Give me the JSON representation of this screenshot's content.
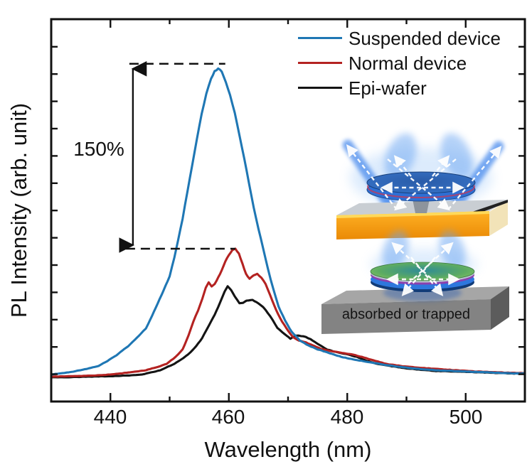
{
  "figure": {
    "background": "#ffffff",
    "xlabel": "Wavelength (nm)",
    "ylabel": "PL Intensity (arb. unit)"
  },
  "chart_data": {
    "type": "line",
    "title": "",
    "xlabel": "Wavelength (nm)",
    "ylabel": "PL Intensity (arb. unit)",
    "x_unit": "nm",
    "y_unit": "arb. unit",
    "xlim": [
      430,
      510
    ],
    "ylim": [
      -0.22,
      2.83
    ],
    "grid": false,
    "legend_position": "top-right-inside",
    "xticks_major": [
      440,
      460,
      480,
      500
    ],
    "xticks_minor": [
      450,
      470,
      490
    ],
    "yticks_labeled": false,
    "series": [
      {
        "name": "Suspended device",
        "color": "#1f77b4",
        "peak_nm": 458.2,
        "peak_value": 2.43,
        "points": [
          [
            430,
            0
          ],
          [
            433,
            0.017
          ],
          [
            436,
            0.045
          ],
          [
            438,
            0.068
          ],
          [
            439.5,
            0.107
          ],
          [
            441,
            0.153
          ],
          [
            443,
            0.226
          ],
          [
            444.5,
            0.294
          ],
          [
            446,
            0.367
          ],
          [
            447,
            0.463
          ],
          [
            448,
            0.565
          ],
          [
            449,
            0.672
          ],
          [
            450,
            0.78
          ],
          [
            450.8,
            0.93
          ],
          [
            451.4,
            1.06
          ],
          [
            452.2,
            1.24
          ],
          [
            453,
            1.45
          ],
          [
            453.8,
            1.66
          ],
          [
            454.6,
            1.87
          ],
          [
            455.4,
            2.07
          ],
          [
            456.2,
            2.23
          ],
          [
            457,
            2.35
          ],
          [
            457.6,
            2.41
          ],
          [
            458.2,
            2.43
          ],
          [
            458.8,
            2.41
          ],
          [
            459.5,
            2.32
          ],
          [
            460.2,
            2.22
          ],
          [
            461,
            2.08
          ],
          [
            461.8,
            1.9
          ],
          [
            462.6,
            1.72
          ],
          [
            463.4,
            1.52
          ],
          [
            464.2,
            1.33
          ],
          [
            465,
            1.16
          ],
          [
            465.8,
            1.0
          ],
          [
            466.6,
            0.84
          ],
          [
            467.5,
            0.68
          ],
          [
            468.4,
            0.54
          ],
          [
            469.5,
            0.43
          ],
          [
            470.6,
            0.34
          ],
          [
            472,
            0.27
          ],
          [
            473.5,
            0.23
          ],
          [
            475,
            0.2
          ],
          [
            477,
            0.17
          ],
          [
            479,
            0.14
          ],
          [
            481,
            0.12
          ],
          [
            483.5,
            0.1
          ],
          [
            486,
            0.08
          ],
          [
            489,
            0.06
          ],
          [
            492,
            0.045
          ],
          [
            495,
            0.034
          ],
          [
            498,
            0.028
          ],
          [
            501,
            0.022
          ],
          [
            504,
            0.017
          ],
          [
            507,
            0.011
          ],
          [
            510,
            0.008
          ]
        ]
      },
      {
        "name": "Normal device",
        "color": "#b42221",
        "peak_nm": 461.1,
        "peak_value": 1.0,
        "points": [
          [
            430,
            -0.017
          ],
          [
            434,
            -0.013
          ],
          [
            437,
            -0.009
          ],
          [
            440,
            0
          ],
          [
            442,
            0.01
          ],
          [
            444,
            0.022
          ],
          [
            446,
            0.034
          ],
          [
            448,
            0.06
          ],
          [
            449.5,
            0.085
          ],
          [
            451,
            0.14
          ],
          [
            452.2,
            0.2
          ],
          [
            453.2,
            0.31
          ],
          [
            454,
            0.42
          ],
          [
            454.8,
            0.51
          ],
          [
            455.5,
            0.6
          ],
          [
            456.1,
            0.69
          ],
          [
            456.6,
            0.734
          ],
          [
            457.1,
            0.7
          ],
          [
            457.6,
            0.72
          ],
          [
            458.2,
            0.77
          ],
          [
            458.8,
            0.83
          ],
          [
            459.4,
            0.9
          ],
          [
            460,
            0.95
          ],
          [
            460.6,
            0.99
          ],
          [
            461.1,
            1.0
          ],
          [
            461.7,
            0.96
          ],
          [
            462.3,
            0.88
          ],
          [
            462.9,
            0.8
          ],
          [
            463.5,
            0.76
          ],
          [
            464.2,
            0.79
          ],
          [
            464.8,
            0.8
          ],
          [
            465.5,
            0.77
          ],
          [
            466.2,
            0.72
          ],
          [
            467,
            0.63
          ],
          [
            468,
            0.51
          ],
          [
            469,
            0.42
          ],
          [
            470,
            0.35
          ],
          [
            470.8,
            0.3
          ],
          [
            471.8,
            0.27
          ],
          [
            473,
            0.256
          ],
          [
            474.2,
            0.23
          ],
          [
            475.5,
            0.205
          ],
          [
            476.8,
            0.19
          ],
          [
            478,
            0.18
          ],
          [
            479.5,
            0.17
          ],
          [
            481,
            0.158
          ],
          [
            482.5,
            0.14
          ],
          [
            484,
            0.118
          ],
          [
            485.5,
            0.098
          ],
          [
            487,
            0.081
          ],
          [
            489,
            0.068
          ],
          [
            491.5,
            0.057
          ],
          [
            494.5,
            0.046
          ],
          [
            498,
            0.035
          ],
          [
            501.5,
            0.025
          ],
          [
            505,
            0.018
          ],
          [
            507.5,
            0.014
          ],
          [
            510,
            0.011
          ]
        ]
      },
      {
        "name": "Epi-wafer",
        "color": "#141414",
        "peak_nm": 459.8,
        "peak_value": 0.7,
        "points": [
          [
            430,
            -0.023
          ],
          [
            434,
            -0.02
          ],
          [
            438,
            -0.015
          ],
          [
            441.8,
            -0.011
          ],
          [
            445.4,
            0
          ],
          [
            448.4,
            0.034
          ],
          [
            450.8,
            0.085
          ],
          [
            452.3,
            0.13
          ],
          [
            453.5,
            0.175
          ],
          [
            454.5,
            0.226
          ],
          [
            455.5,
            0.29
          ],
          [
            456.3,
            0.36
          ],
          [
            457,
            0.424
          ],
          [
            457.6,
            0.475
          ],
          [
            458.2,
            0.537
          ],
          [
            458.8,
            0.605
          ],
          [
            459.3,
            0.66
          ],
          [
            459.8,
            0.7
          ],
          [
            460.4,
            0.67
          ],
          [
            461,
            0.62
          ],
          [
            461.8,
            0.567
          ],
          [
            462.4,
            0.57
          ],
          [
            463,
            0.587
          ],
          [
            464,
            0.593
          ],
          [
            465,
            0.565
          ],
          [
            465.8,
            0.537
          ],
          [
            467,
            0.463
          ],
          [
            468.2,
            0.37
          ],
          [
            469.4,
            0.322
          ],
          [
            470.4,
            0.285
          ],
          [
            471.4,
            0.31
          ],
          [
            472.6,
            0.305
          ],
          [
            473.8,
            0.282
          ],
          [
            475.4,
            0.232
          ],
          [
            476.6,
            0.198
          ],
          [
            478,
            0.18
          ],
          [
            479,
            0.17
          ],
          [
            480.2,
            0.158
          ],
          [
            481.6,
            0.14
          ],
          [
            483,
            0.113
          ],
          [
            485,
            0.085
          ],
          [
            487.2,
            0.068
          ],
          [
            489.6,
            0.051
          ],
          [
            492,
            0.04
          ],
          [
            495,
            0.028
          ],
          [
            499,
            0.023
          ],
          [
            502.5,
            0.017
          ],
          [
            506,
            0.011
          ],
          [
            510,
            0.006
          ]
        ]
      }
    ],
    "annotations": {
      "percent_label": "150%",
      "arrow_nm": 443.8,
      "dashed_top": {
        "value": 2.47,
        "from_nm": 443.2,
        "to_nm": 459.4
      },
      "dashed_bottom": {
        "value": 1.0,
        "from_nm": 442.6,
        "to_nm": 461.1
      }
    }
  },
  "insets": {
    "suspended_device": {
      "description": "suspended microdisk above gold substrate, light reflected and extracted",
      "caption": ""
    },
    "normal_device": {
      "description": "microdisk on gray substrate, light lost into substrate",
      "caption": "absorbed or trapped"
    }
  }
}
